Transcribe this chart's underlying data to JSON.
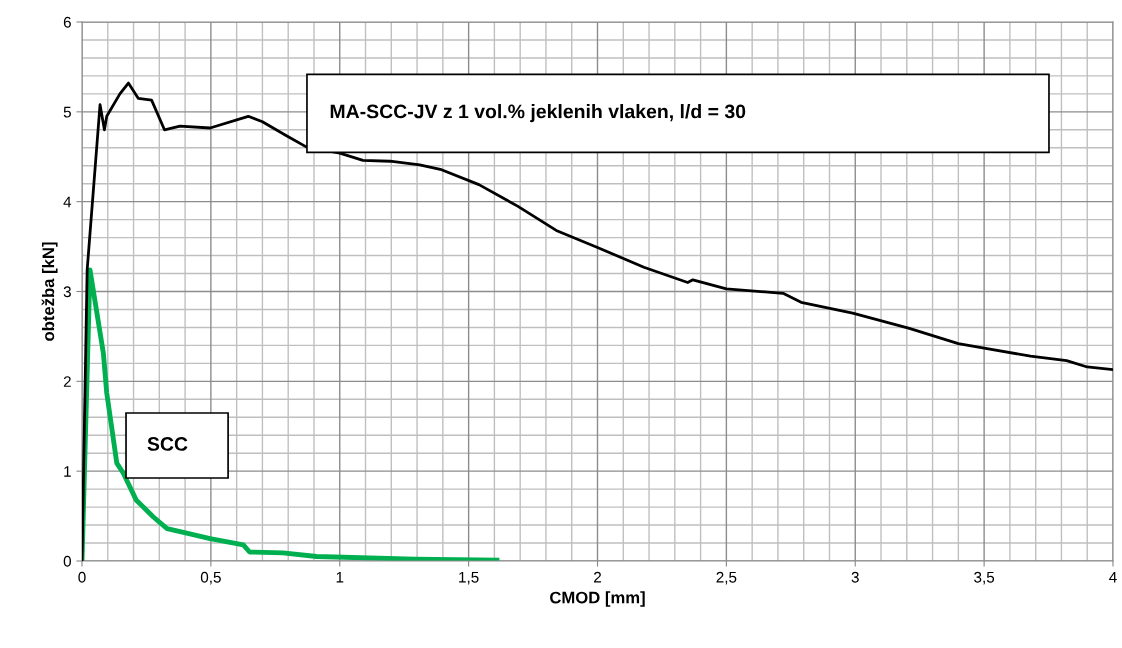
{
  "chart_data": {
    "type": "line",
    "xlabel": "CMOD [mm]",
    "ylabel": "obtežba [kN]",
    "xlim": [
      0,
      4
    ],
    "ylim": [
      0,
      6
    ],
    "xticks": [
      0,
      {
        "value": 0.5,
        "label": "0,5"
      },
      1,
      {
        "value": 1.5,
        "label": "1,5"
      },
      2,
      {
        "value": 2.5,
        "label": "2,5"
      },
      3,
      {
        "value": 3.5,
        "label": "3,5"
      },
      4
    ],
    "yticks": [
      0,
      1,
      2,
      3,
      4,
      5,
      6
    ],
    "grid": true,
    "marker": "none",
    "line_style": "solid",
    "annotations": [
      "MA-SCC-JV z 1 vol.% jeklenih vlaken, l/d = 30",
      "SCC"
    ],
    "series": [
      {
        "color": "#000000",
        "x": [
          0,
          0.02,
          0.07,
          0.087,
          0.096,
          0.147,
          0.18,
          0.218,
          0.27,
          0.32,
          0.38,
          0.497,
          0.645,
          0.7,
          0.79,
          0.87,
          1.0,
          1.09,
          1.195,
          1.31,
          1.39,
          1.54,
          1.69,
          1.84,
          2.0,
          2.18,
          2.35,
          2.37,
          2.5,
          2.72,
          2.79,
          2.99,
          3.21,
          3.4,
          3.5,
          3.68,
          3.82,
          3.9,
          4.0
        ],
        "values": [
          0,
          3.24,
          5.08,
          4.8,
          4.95,
          5.2,
          5.32,
          5.15,
          5.13,
          4.8,
          4.84,
          4.82,
          4.95,
          4.89,
          4.74,
          4.61,
          4.54,
          4.46,
          4.45,
          4.41,
          4.36,
          4.19,
          3.95,
          3.68,
          3.49,
          3.27,
          3.1,
          3.13,
          3.03,
          2.98,
          2.88,
          2.76,
          2.59,
          2.42,
          2.37,
          2.28,
          2.23,
          2.16,
          2.13
        ]
      },
      {
        "color": "#00b050",
        "x": [
          0,
          0.031,
          0.083,
          0.096,
          0.135,
          0.16,
          0.21,
          0.277,
          0.33,
          0.406,
          0.497,
          0.626,
          0.65,
          0.78,
          0.91,
          1.29,
          1.61
        ],
        "values": [
          0,
          3.24,
          2.31,
          1.87,
          1.09,
          0.98,
          0.68,
          0.49,
          0.36,
          0.31,
          0.25,
          0.18,
          0.1,
          0.09,
          0.05,
          0.02,
          0.01
        ]
      }
    ]
  }
}
